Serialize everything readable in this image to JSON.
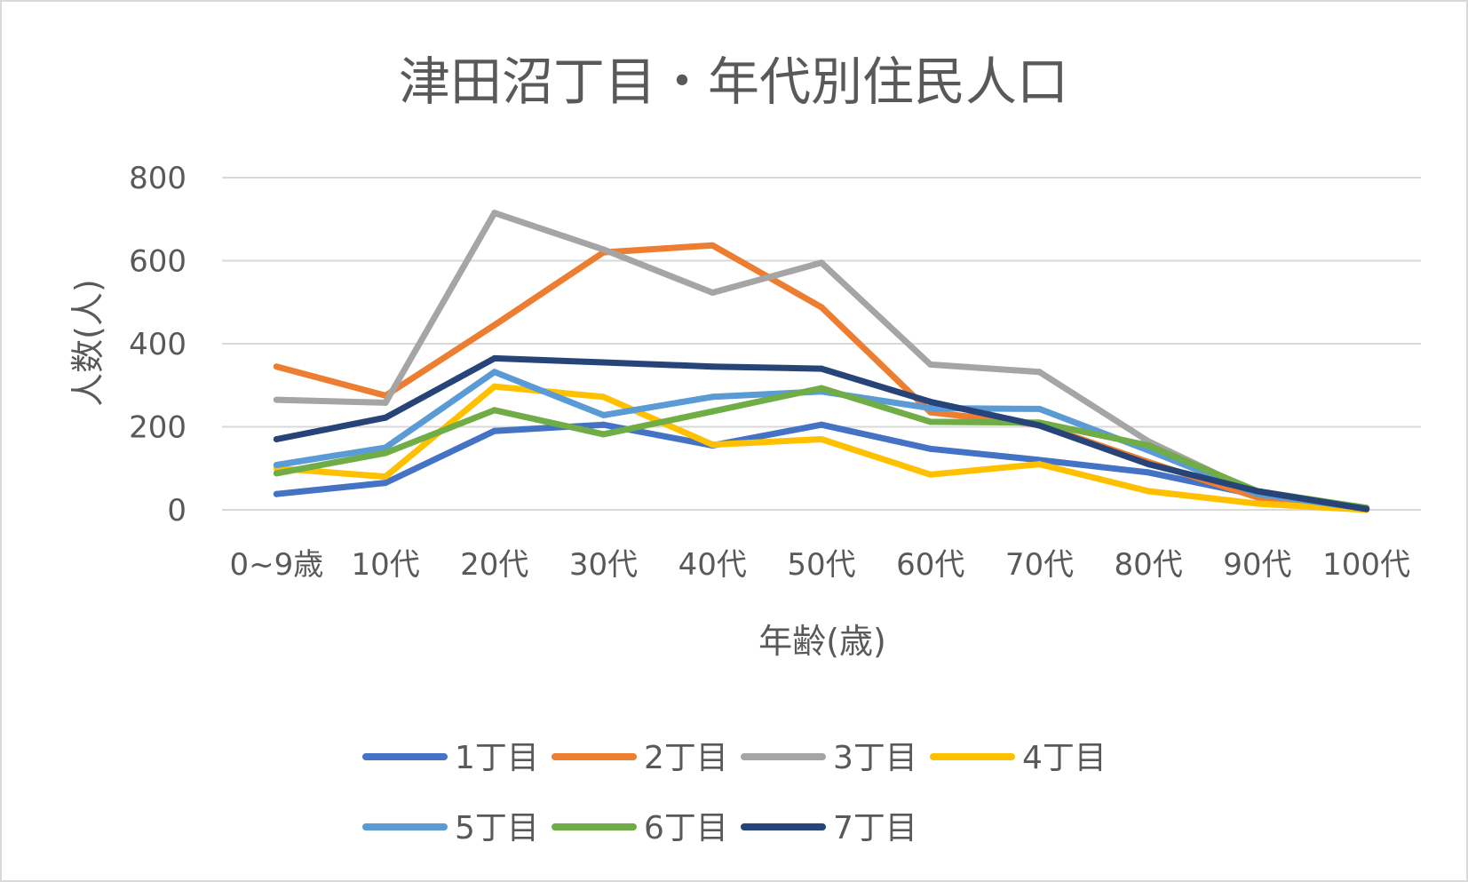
{
  "chart_data": {
    "type": "line",
    "title": "津田沼丁目・年代別住民人口",
    "xlabel": "年齢(歳)",
    "ylabel": "人数(人)",
    "ylim": [
      0,
      800
    ],
    "yticks": [
      0,
      200,
      400,
      600,
      800
    ],
    "grid": true,
    "legend_position": "bottom",
    "categories": [
      "0~9歳",
      "10代",
      "20代",
      "30代",
      "40代",
      "50代",
      "60代",
      "70代",
      "80代",
      "90代",
      "100代"
    ],
    "series": [
      {
        "name": "1丁目",
        "color": "#4472c4",
        "values": [
          38,
          65,
          190,
          205,
          155,
          205,
          147,
          120,
          90,
          35,
          2
        ]
      },
      {
        "name": "2丁目",
        "color": "#ed7d31",
        "values": [
          345,
          275,
          445,
          620,
          637,
          488,
          235,
          205,
          115,
          30,
          2
        ]
      },
      {
        "name": "3丁目",
        "color": "#a5a5a5",
        "values": [
          265,
          258,
          715,
          627,
          523,
          595,
          350,
          332,
          165,
          40,
          3
        ]
      },
      {
        "name": "4丁目",
        "color": "#ffc000",
        "values": [
          100,
          80,
          297,
          272,
          157,
          170,
          85,
          110,
          45,
          15,
          0
        ]
      },
      {
        "name": "5丁目",
        "color": "#5b9bd5",
        "values": [
          108,
          150,
          332,
          228,
          272,
          285,
          245,
          243,
          143,
          38,
          3
        ]
      },
      {
        "name": "6丁目",
        "color": "#70ad47",
        "values": [
          88,
          137,
          240,
          182,
          237,
          293,
          212,
          210,
          155,
          45,
          5
        ]
      },
      {
        "name": "7丁目",
        "color": "#264478",
        "values": [
          170,
          222,
          365,
          355,
          345,
          340,
          260,
          203,
          110,
          45,
          2
        ]
      }
    ]
  }
}
